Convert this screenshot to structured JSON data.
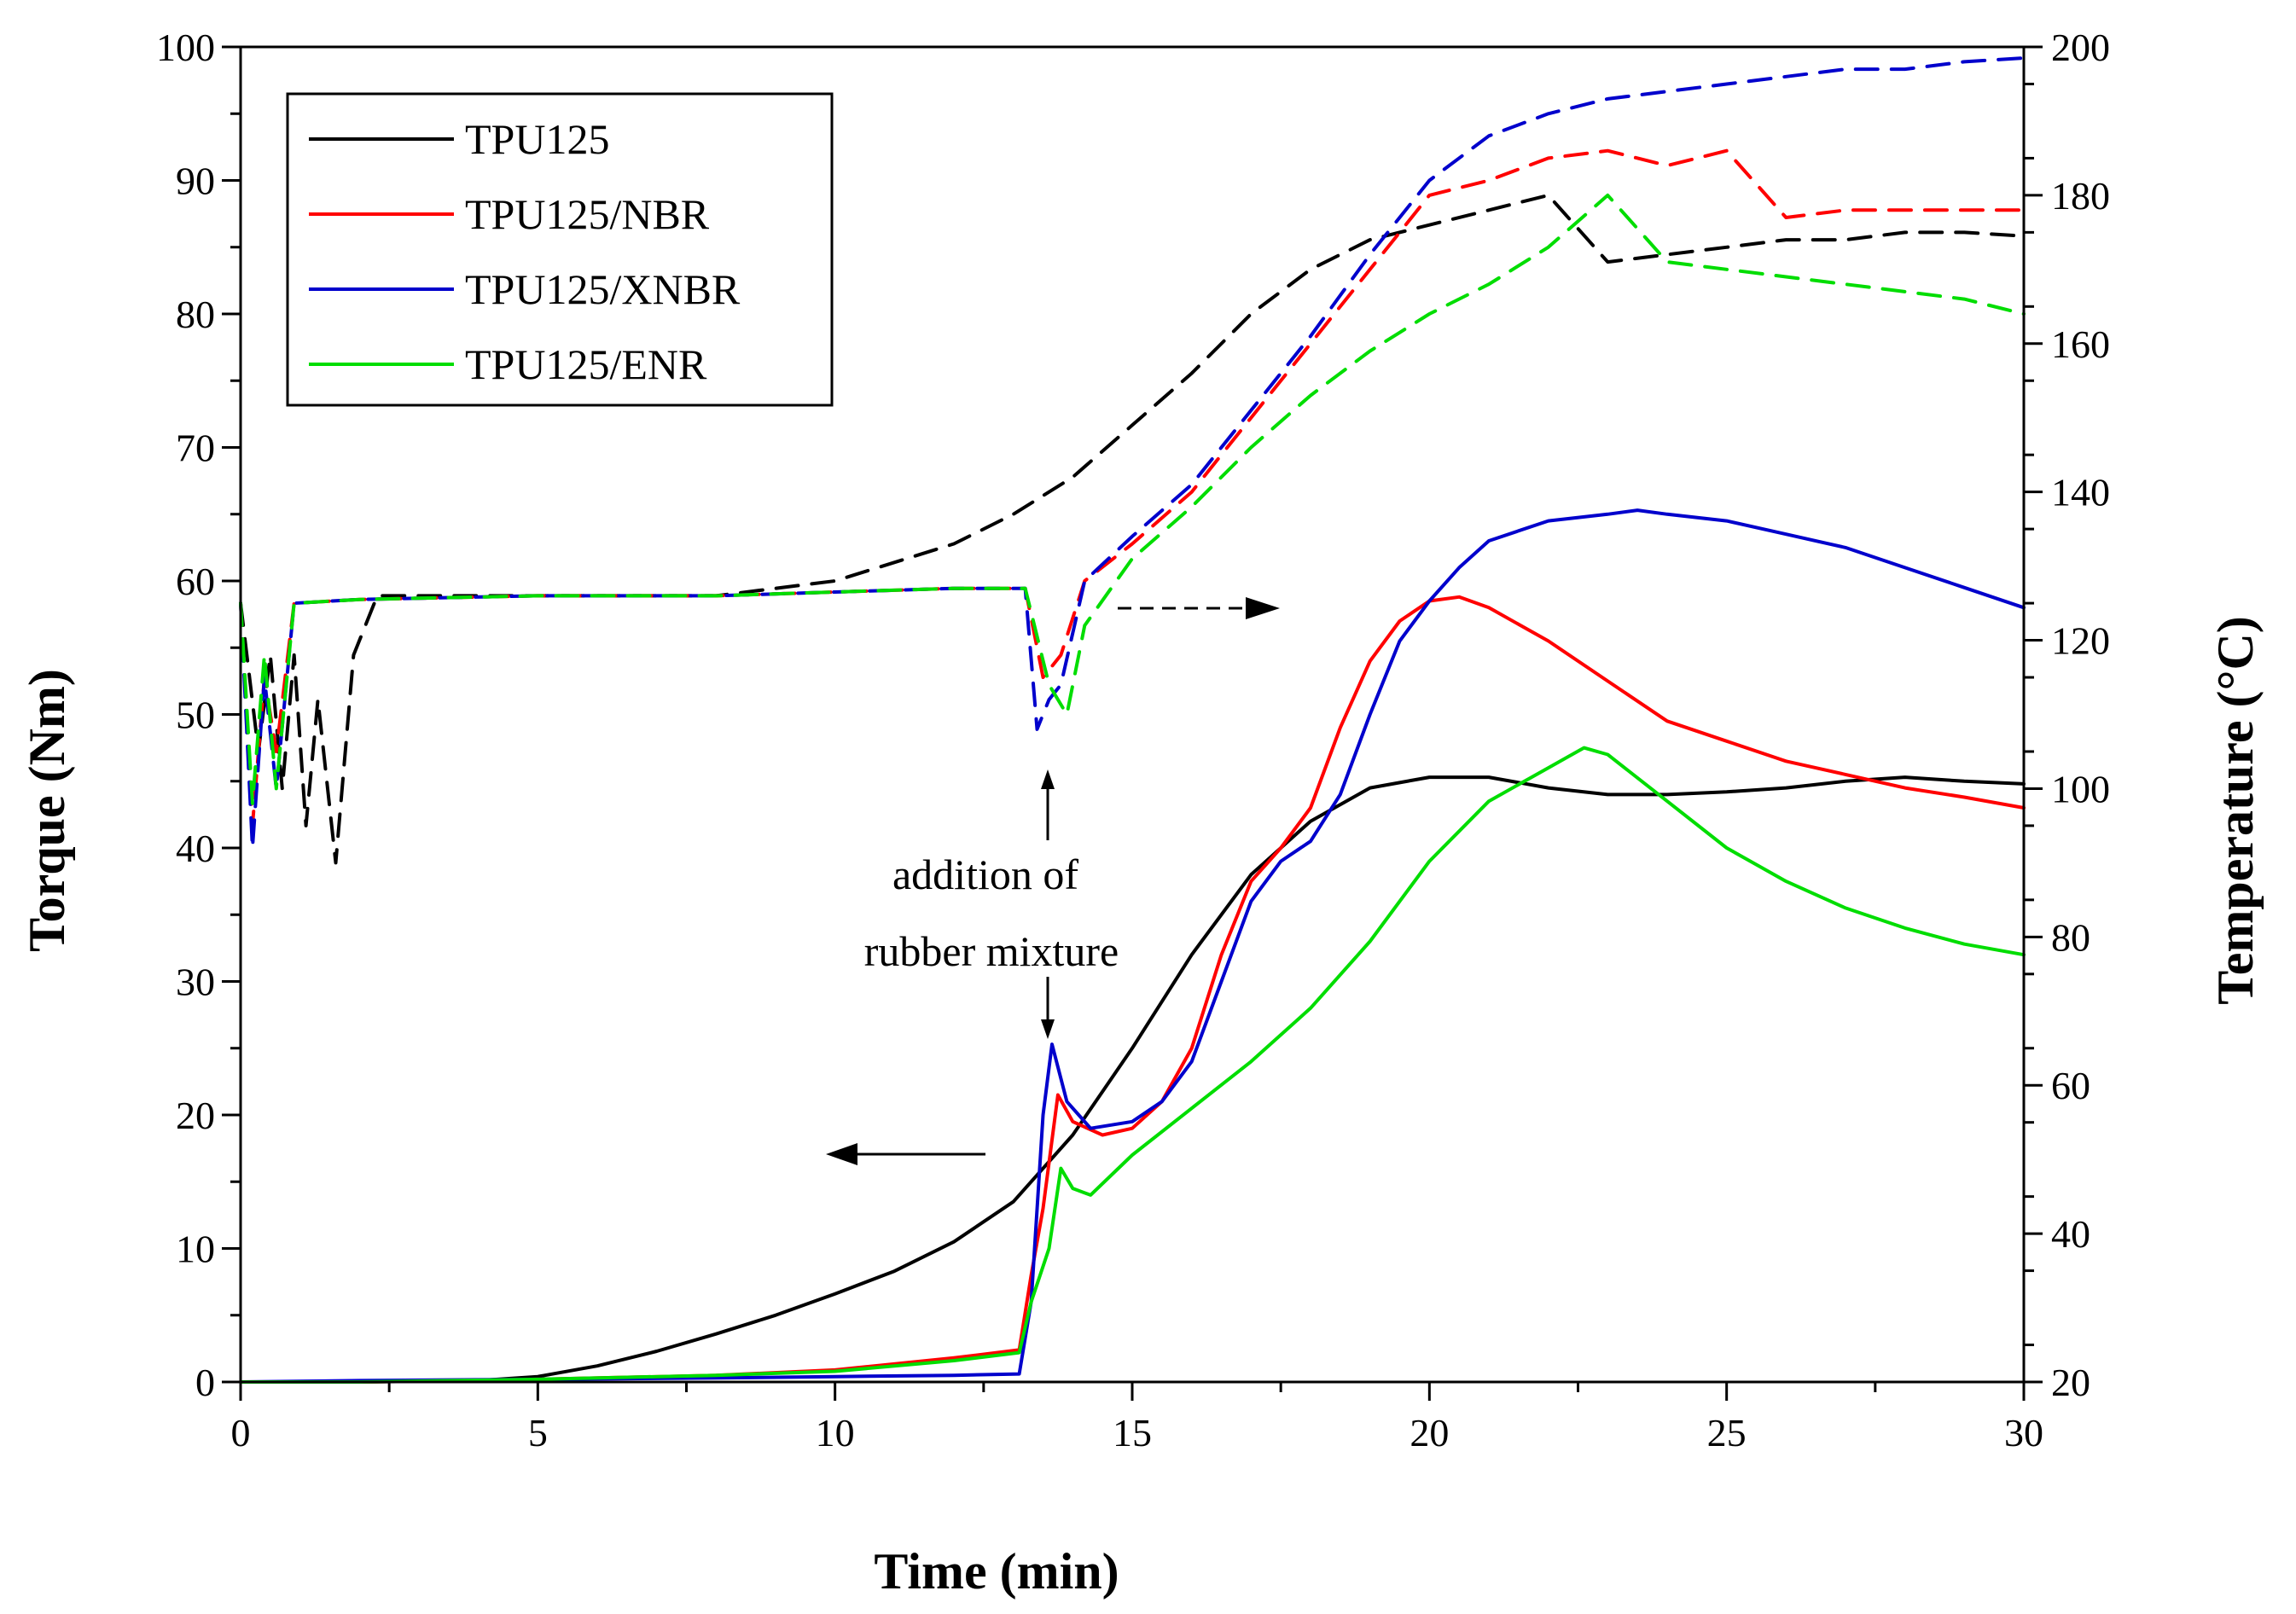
{
  "chart_data": {
    "type": "line",
    "title": "",
    "xlabel": "Time (min)",
    "ylabel": "Torque (Nm)",
    "y2label": "Temperature (°C)",
    "xlim": [
      0,
      30
    ],
    "ylim": [
      0,
      100
    ],
    "y2lim": [
      20,
      200
    ],
    "xticks": [
      0,
      5,
      10,
      15,
      20,
      25,
      30
    ],
    "yticks": [
      0,
      10,
      20,
      30,
      40,
      50,
      60,
      70,
      80,
      90,
      100
    ],
    "y2ticks": [
      20,
      40,
      60,
      80,
      100,
      120,
      140,
      160,
      180,
      200
    ],
    "grid": false,
    "legend_position": "top-left",
    "legend": [
      "TPU125",
      "TPU125/NBR",
      "TPU125/XNBR",
      "TPU125/ENR"
    ],
    "annotation": {
      "line1": "addition of",
      "line2": "rubber mixture",
      "x": 13.6
    },
    "series": [
      {
        "name": "TPU125",
        "color": "#000000",
        "axis": "torque",
        "style": "solid",
        "x": [
          0,
          2,
          4,
          5,
          6,
          7,
          8,
          9,
          10,
          11,
          12,
          13,
          14,
          15,
          16,
          17,
          18,
          19,
          20,
          21,
          22,
          23,
          24,
          25,
          26,
          27,
          28,
          29,
          30
        ],
        "y": [
          0,
          0,
          0.1,
          0.4,
          1.2,
          2.3,
          3.6,
          5.0,
          6.6,
          8.3,
          10.5,
          13.5,
          18.5,
          25.0,
          32.0,
          38.0,
          42.0,
          44.5,
          45.3,
          45.3,
          44.5,
          44.0,
          44.0,
          44.2,
          44.5,
          45.0,
          45.3,
          45.0,
          44.8
        ]
      },
      {
        "name": "TPU125/NBR",
        "color": "#ff0000",
        "axis": "torque",
        "style": "solid",
        "x": [
          0,
          2,
          5,
          8,
          10,
          12,
          13.1,
          13.3,
          13.5,
          13.75,
          14.0,
          14.5,
          15,
          15.5,
          16,
          16.5,
          17,
          17.5,
          18,
          18.5,
          19,
          19.5,
          20,
          20.5,
          21,
          22,
          23,
          24,
          25,
          26,
          27,
          28,
          29,
          30
        ],
        "y": [
          0,
          0,
          0.2,
          0.5,
          0.9,
          1.8,
          2.4,
          8,
          13,
          21.5,
          19.5,
          18.5,
          19.0,
          21,
          25,
          32,
          37.5,
          40,
          43,
          49,
          54,
          57,
          58.5,
          58.8,
          58,
          55.5,
          52.5,
          49.5,
          48.0,
          46.5,
          45.5,
          44.5,
          43.8,
          43.0
        ]
      },
      {
        "name": "TPU125/XNBR",
        "color": "#0000cc",
        "axis": "torque",
        "style": "solid",
        "x": [
          0,
          2,
          5,
          8,
          10,
          12,
          13.1,
          13.3,
          13.5,
          13.65,
          13.9,
          14.3,
          15,
          15.5,
          16,
          16.5,
          17,
          17.5,
          18,
          18.5,
          19,
          19.5,
          20,
          20.5,
          21,
          22,
          23,
          23.5,
          24,
          25,
          26,
          27,
          28,
          29,
          30
        ],
        "y": [
          0,
          0.1,
          0.2,
          0.3,
          0.4,
          0.5,
          0.6,
          6,
          20,
          25.3,
          21,
          19.0,
          19.5,
          21,
          24,
          30,
          36,
          39,
          40.5,
          44,
          50,
          55.5,
          58.5,
          61,
          63,
          64.5,
          65.0,
          65.3,
          65.0,
          64.5,
          63.5,
          62.5,
          61.0,
          59.5,
          58.0
        ]
      },
      {
        "name": "TPU125/ENR",
        "color": "#00dd00",
        "axis": "torque",
        "style": "solid",
        "x": [
          0,
          2,
          5,
          8,
          10,
          12,
          13.1,
          13.3,
          13.6,
          13.8,
          14.0,
          14.3,
          15,
          16,
          17,
          18,
          19,
          20,
          21,
          22,
          22.6,
          23,
          24,
          25,
          26,
          27,
          28,
          29,
          30
        ],
        "y": [
          0,
          0,
          0.2,
          0.5,
          0.8,
          1.6,
          2.2,
          6,
          10,
          16,
          14.5,
          14.0,
          17.0,
          20.5,
          24.0,
          28,
          33,
          39,
          43.5,
          46,
          47.5,
          47.0,
          43.5,
          40,
          37.5,
          35.5,
          34,
          32.8,
          32.0
        ]
      },
      {
        "name": "TPU125 temperature",
        "color": "#000000",
        "axis": "temperature",
        "style": "dashed",
        "x": [
          0,
          0.3,
          0.5,
          0.7,
          0.9,
          1.1,
          1.3,
          1.6,
          1.9,
          2.3,
          5,
          8,
          10,
          12,
          13,
          14,
          15,
          16,
          17,
          18,
          19,
          20,
          21,
          22,
          23,
          24,
          25,
          26,
          27,
          28,
          29,
          30
        ],
        "y": [
          125,
          105,
          118,
          100,
          118,
          95,
          112,
          90,
          118,
          126,
          126,
          126,
          128,
          133,
          137,
          142,
          149,
          156,
          164,
          170,
          174,
          176,
          178,
          180,
          171,
          172,
          173,
          174,
          174,
          175,
          175,
          174.5
        ]
      },
      {
        "name": "TPU125/NBR temperature",
        "color": "#ff0000",
        "axis": "temperature",
        "style": "dashed",
        "x": [
          0,
          0.2,
          0.4,
          0.6,
          0.9,
          2,
          5,
          8,
          10,
          12,
          13.2,
          13.5,
          13.8,
          14.2,
          15,
          16,
          17,
          18,
          19,
          20,
          21,
          22,
          23,
          24,
          25,
          26,
          27,
          28,
          29,
          30
        ],
        "y": [
          125,
          95,
          115,
          105,
          125,
          125.5,
          126,
          126,
          126.5,
          127,
          127,
          115,
          118,
          128,
          133,
          140,
          150,
          160,
          170,
          180,
          182,
          185,
          186,
          184,
          186,
          177,
          178,
          178,
          178,
          178
        ]
      },
      {
        "name": "TPU125/XNBR temperature",
        "color": "#0000cc",
        "axis": "temperature",
        "style": "dashed",
        "x": [
          0,
          0.2,
          0.4,
          0.6,
          0.9,
          2,
          5,
          8,
          10,
          12,
          13.2,
          13.4,
          13.6,
          13.8,
          14.2,
          15,
          16,
          17,
          18,
          19,
          20,
          21,
          22,
          23,
          24,
          25,
          26,
          27,
          28,
          29,
          30
        ],
        "y": [
          125,
          92,
          115,
          100,
          125,
          125.5,
          126,
          126,
          126.5,
          127,
          127,
          108,
          112,
          114,
          128,
          134,
          141,
          151,
          161,
          172,
          182,
          188,
          191,
          193,
          194,
          195,
          196,
          197,
          197,
          198,
          198.5
        ]
      },
      {
        "name": "TPU125/ENR temperature",
        "color": "#00dd00",
        "axis": "temperature",
        "style": "dashed",
        "x": [
          0,
          0.2,
          0.4,
          0.6,
          0.9,
          2,
          5,
          8,
          10,
          12,
          13.2,
          13.6,
          13.9,
          14.2,
          15,
          16,
          17,
          18,
          19,
          20,
          21,
          22,
          23,
          24,
          25,
          26,
          27,
          28,
          29,
          30
        ],
        "y": [
          125,
          98,
          118,
          100,
          125,
          125.5,
          126,
          126,
          126.5,
          127,
          127,
          114,
          110,
          122,
          131,
          138,
          146,
          153,
          159,
          164,
          168,
          173,
          180,
          171,
          170,
          169,
          168,
          167,
          166,
          164
        ]
      }
    ]
  }
}
